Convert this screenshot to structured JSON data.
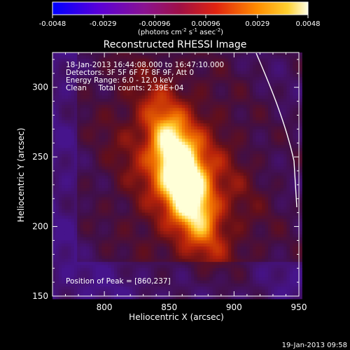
{
  "chart_data": {
    "type": "heatmap",
    "title": "Reconstructed RHESSI Image",
    "xlabel": "Heliocentric X (arcsec)",
    "ylabel": "Heliocentric Y (arcsec)",
    "xlim": [
      760,
      950
    ],
    "ylim": [
      150,
      325
    ],
    "x_ticks": [
      800,
      850,
      900,
      950
    ],
    "y_ticks": [
      150,
      200,
      250,
      300
    ],
    "peak": [
      860,
      237
    ],
    "colorbar": {
      "min": -0.0048,
      "max": 0.0048,
      "ticks": [
        "-0.0048",
        "-0.0029",
        "-0.00096",
        "0.00096",
        "0.0029",
        "0.0048"
      ],
      "unit_prefix": "(photons cm",
      "unit_exp1": "-2",
      "unit_mid": " s",
      "unit_exp2": "-1",
      "unit_mid2": " asec",
      "unit_exp3": "-2",
      "unit_suffix": ")"
    },
    "annotations": {
      "time_range": "18-Jan-2013 16:44:08.000 to 16:47:10.000",
      "detectors": "Detectors: 3F 5F 6F 7F 8F 9F, Att 0",
      "energy": "Energy Range: 6.0 - 12.0 keV",
      "method": "Clean     Total counts: 2.39E+04",
      "peak_label": "Position of Peak = [860,237]"
    },
    "timestamp": "19-Jan-2013 09:58"
  }
}
